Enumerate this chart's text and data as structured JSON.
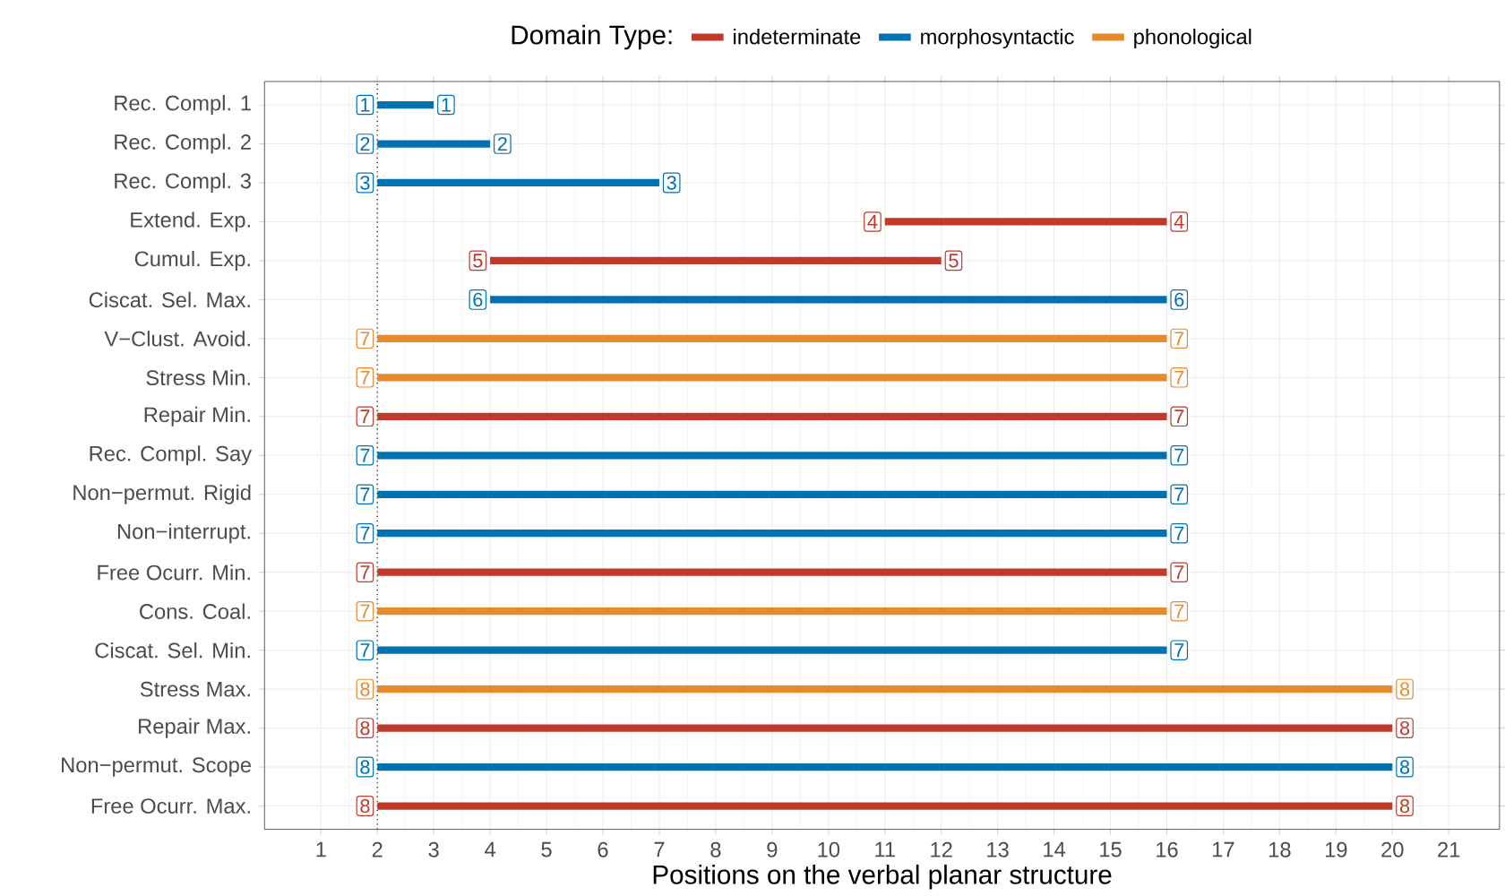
{
  "chart_data": {
    "type": "bar",
    "orientation": "horizontal",
    "xlabel": "Positions on the verbal planar structure",
    "legend_title": "Domain Type:",
    "legend": "top",
    "grid": true,
    "categories": [
      "Rec. Compl. 1",
      "Rec. Compl. 2",
      "Rec. Compl. 3",
      "Extend. Exp.",
      "Cumul. Exp.",
      "Ciscat. Sel. Max.",
      "V−Clust. Avoid.",
      "Stress Min.",
      "Repair Min.",
      "Rec. Compl. Say",
      "Non−permut. Rigid",
      "Non−interrupt.",
      "Free Ocurr. Min.",
      "Cons. Coal.",
      "Ciscat. Sel. Min.",
      "Stress Max.",
      "Repair Max.",
      "Non−permut. Scope",
      "Free Ocurr. Max."
    ],
    "series": [
      {
        "name": "indeterminate",
        "color": "#c0392b",
        "values": [
          null,
          null,
          null,
          5,
          8,
          null,
          null,
          null,
          14,
          null,
          null,
          null,
          14,
          null,
          null,
          null,
          18,
          null,
          18
        ],
        "base": [
          null,
          null,
          null,
          11,
          4,
          null,
          null,
          null,
          2,
          null,
          null,
          null,
          2,
          null,
          null,
          null,
          2,
          null,
          2
        ]
      },
      {
        "name": "morphosyntactic",
        "color": "#0072b2",
        "values": [
          1,
          2,
          5,
          null,
          null,
          12,
          null,
          null,
          null,
          14,
          14,
          14,
          null,
          null,
          14,
          null,
          null,
          18,
          null
        ],
        "base": [
          2,
          2,
          2,
          null,
          null,
          4,
          null,
          null,
          null,
          2,
          2,
          2,
          null,
          null,
          2,
          null,
          null,
          2,
          null
        ]
      },
      {
        "name": "phonological",
        "color": "#e68a2e",
        "values": [
          null,
          null,
          null,
          null,
          null,
          null,
          14,
          14,
          null,
          null,
          null,
          null,
          null,
          14,
          null,
          18,
          null,
          null,
          null
        ],
        "base": [
          null,
          null,
          null,
          null,
          null,
          null,
          2,
          2,
          null,
          null,
          null,
          null,
          null,
          2,
          null,
          2,
          null,
          null,
          null
        ]
      }
    ],
    "xlim": [
      0,
      21.9
    ],
    "xticks": [
      1,
      2,
      3,
      4,
      5,
      6,
      7,
      8,
      9,
      10,
      11,
      12,
      13,
      14,
      15,
      16,
      17,
      18,
      19,
      20,
      21
    ],
    "ref_lines": [
      {
        "axis": "x",
        "value": 2,
        "line_style": "dotted"
      }
    ],
    "annotations": [
      {
        "text": "1",
        "x": 2,
        "y": "Rec. Compl. 1"
      },
      {
        "text": "1",
        "x": 3,
        "y": "Rec. Compl. 1"
      },
      {
        "text": "2",
        "x": 2,
        "y": "Rec. Compl. 2"
      },
      {
        "text": "2",
        "x": 4,
        "y": "Rec. Compl. 2"
      },
      {
        "text": "3",
        "x": 2,
        "y": "Rec. Compl. 3"
      },
      {
        "text": "3",
        "x": 7,
        "y": "Rec. Compl. 3"
      },
      {
        "text": "4",
        "x": 11,
        "y": "Extend. Exp."
      },
      {
        "text": "4",
        "x": 16,
        "y": "Extend. Exp."
      },
      {
        "text": "5",
        "x": 4,
        "y": "Cumul. Exp."
      },
      {
        "text": "5",
        "x": 12,
        "y": "Cumul. Exp."
      },
      {
        "text": "6",
        "x": 4,
        "y": "Ciscat. Sel. Max."
      },
      {
        "text": "6",
        "x": 16,
        "y": "Ciscat. Sel. Max."
      },
      {
        "text": "7",
        "x": 2,
        "y": "V−Clust. Avoid."
      },
      {
        "text": "7",
        "x": 16,
        "y": "V−Clust. Avoid."
      },
      {
        "text": "7",
        "x": 2,
        "y": "Stress Min."
      },
      {
        "text": "7",
        "x": 16,
        "y": "Stress Min."
      },
      {
        "text": "7",
        "x": 2,
        "y": "Repair Min."
      },
      {
        "text": "7",
        "x": 16,
        "y": "Repair Min."
      },
      {
        "text": "7",
        "x": 2,
        "y": "Rec. Compl. Say"
      },
      {
        "text": "7",
        "x": 16,
        "y": "Rec. Compl. Say"
      },
      {
        "text": "7",
        "x": 2,
        "y": "Non−permut. Rigid"
      },
      {
        "text": "7",
        "x": 16,
        "y": "Non−permut. Rigid"
      },
      {
        "text": "7",
        "x": 2,
        "y": "Non−interrupt."
      },
      {
        "text": "7",
        "x": 16,
        "y": "Non−interrupt."
      },
      {
        "text": "7",
        "x": 2,
        "y": "Free Ocurr. Min."
      },
      {
        "text": "7",
        "x": 16,
        "y": "Free Ocurr. Min."
      },
      {
        "text": "7",
        "x": 2,
        "y": "Cons. Coal."
      },
      {
        "text": "7",
        "x": 16,
        "y": "Cons. Coal."
      },
      {
        "text": "7",
        "x": 2,
        "y": "Ciscat. Sel. Min."
      },
      {
        "text": "7",
        "x": 16,
        "y": "Ciscat. Sel. Min."
      },
      {
        "text": "8",
        "x": 2,
        "y": "Stress Max."
      },
      {
        "text": "8",
        "x": 20,
        "y": "Stress Max."
      },
      {
        "text": "8",
        "x": 2,
        "y": "Repair Max."
      },
      {
        "text": "8",
        "x": 20,
        "y": "Repair Max."
      },
      {
        "text": "8",
        "x": 2,
        "y": "Non−permut. Scope"
      },
      {
        "text": "8",
        "x": 20,
        "y": "Non−permut. Scope"
      },
      {
        "text": "8",
        "x": 2,
        "y": "Free Ocurr. Max."
      },
      {
        "text": "8",
        "x": 20,
        "y": "Free Ocurr. Max."
      }
    ]
  }
}
